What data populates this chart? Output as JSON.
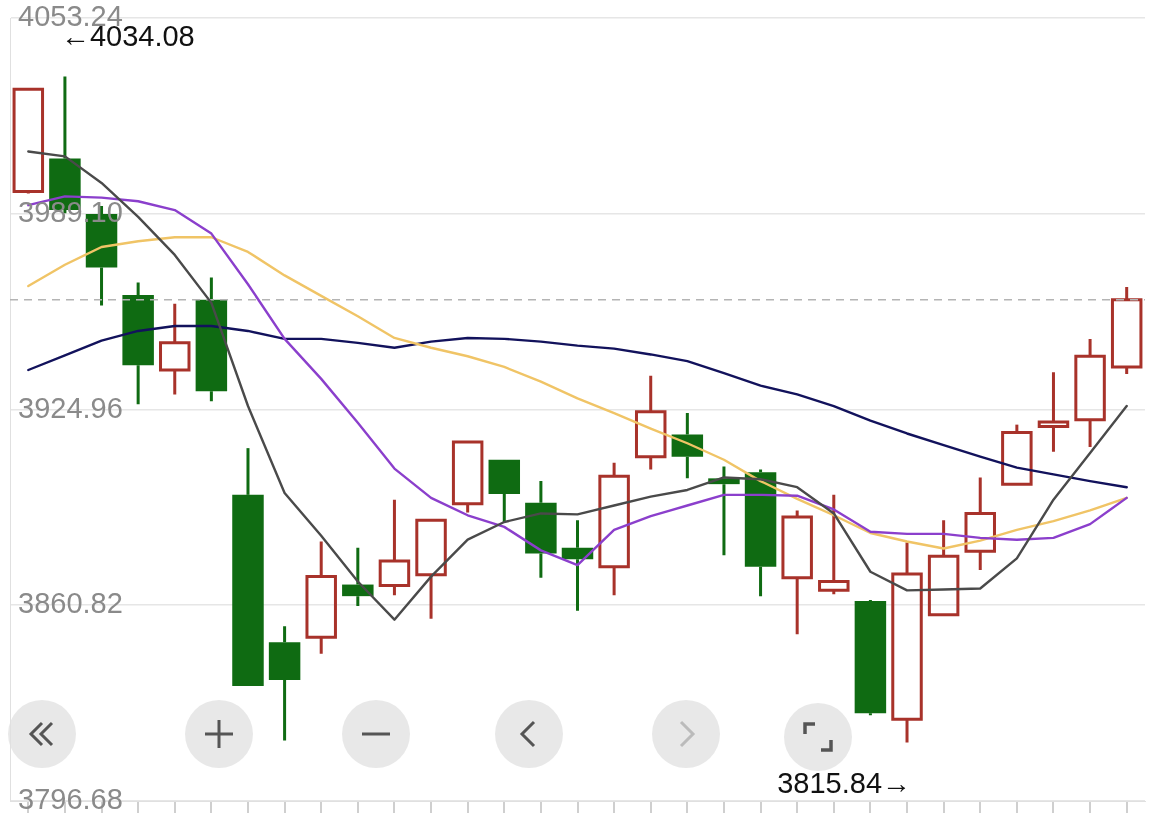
{
  "chart_data": {
    "type": "candlestick",
    "categories": [
      null,
      null,
      null,
      null,
      null,
      null,
      null,
      null,
      null,
      null,
      null,
      null,
      null,
      null,
      null,
      null,
      null,
      null,
      null,
      null,
      null,
      null,
      null,
      null,
      null,
      null,
      null,
      null,
      null,
      null,
      null
    ],
    "ohlc": [
      [
        3996.4,
        4030.2,
        3995.7,
        4029.9
      ],
      [
        4007.2,
        4034.08,
        3989.3,
        3990.3
      ],
      [
        3989.0,
        3991.6,
        3959.0,
        3971.5
      ],
      [
        3962.5,
        3966.6,
        3926.7,
        3939.5
      ],
      [
        3937.9,
        3959.6,
        3929.9,
        3946.8
      ],
      [
        3960.9,
        3968.2,
        3927.7,
        3930.9
      ],
      [
        3897.0,
        3912.3,
        3834.4,
        3834.4
      ],
      [
        3848.7,
        3853.9,
        3816.5,
        3836.3
      ],
      [
        3850.3,
        3881.7,
        3844.9,
        3870.2
      ],
      [
        3867.6,
        3879.7,
        3860.6,
        3863.8
      ],
      [
        3867.3,
        3895.4,
        3864.1,
        3875.3
      ],
      [
        3870.8,
        3888.7,
        3856.4,
        3888.7
      ],
      [
        3894.1,
        3914.3,
        3891.2,
        3914.3
      ],
      [
        3908.5,
        3908.5,
        3888.1,
        3897.3
      ],
      [
        3894.4,
        3901.5,
        3869.8,
        3877.8
      ],
      [
        3879.7,
        3888.7,
        3859.0,
        3875.9
      ],
      [
        3873.4,
        3907.5,
        3864.1,
        3903.1
      ],
      [
        3909.5,
        3936.0,
        3905.3,
        3924.2
      ],
      [
        3916.8,
        3923.8,
        3902.4,
        3909.5
      ],
      [
        3902.4,
        3906.3,
        3877.2,
        3900.5
      ],
      [
        3904.4,
        3905.3,
        3863.8,
        3873.4
      ],
      [
        3869.8,
        3891.9,
        3851.3,
        3889.7
      ],
      [
        3865.7,
        3897.0,
        3864.4,
        3868.6
      ],
      [
        3862.2,
        3862.5,
        3824.8,
        3825.4
      ],
      [
        3823.5,
        3881.4,
        3815.84,
        3871.1
      ],
      [
        3857.7,
        3888.7,
        3857.4,
        3876.9
      ],
      [
        3878.5,
        3902.7,
        3872.4,
        3890.9
      ],
      [
        3900.5,
        3920.0,
        3900.5,
        3917.4
      ],
      [
        3919.4,
        3937.2,
        3911.1,
        3920.9
      ],
      [
        3921.6,
        3948.1,
        3912.7,
        3942.4
      ],
      [
        3938.9,
        3965.1,
        3936.6,
        3960.9
      ]
    ],
    "colors": [
      "#a8322a",
      "#0f6b12",
      "#0f6b12",
      "#0f6b12",
      "#a8322a",
      "#0f6b12",
      "#0f6b12",
      "#0f6b12",
      "#a8322a",
      "#0f6b12",
      "#a8322a",
      "#a8322a",
      "#a8322a",
      "#0f6b12",
      "#0f6b12",
      "#0f6b12",
      "#a8322a",
      "#a8322a",
      "#0f6b12",
      "#0f6b12",
      "#0f6b12",
      "#a8322a",
      "#a8322a",
      "#0f6b12",
      "#a8322a",
      "#a8322a",
      "#a8322a",
      "#a8322a",
      "#a8322a",
      "#a8322a",
      "#a8322a"
    ],
    "series": [
      {
        "type": "line",
        "color": "#4a4a4a",
        "values": [
          4009.5,
          4007.9,
          3999.2,
          3988.1,
          3975.6,
          3959.9,
          3926.1,
          3897.6,
          3883.6,
          3868.6,
          3856.1,
          3870.2,
          3882.3,
          3888.1,
          3890.9,
          3890.6,
          3893.5,
          3896.4,
          3898.6,
          3902.7,
          3902.1,
          3899.5,
          3890.9,
          3871.8,
          3865.7,
          3866.0,
          3866.3,
          3876.2,
          3895.4,
          3910.7,
          3926.1
        ]
      },
      {
        "type": "line",
        "color": "#8b3fcc",
        "values": [
          3991.9,
          3994.8,
          3994.4,
          3993.2,
          3990.3,
          3982.6,
          3966.0,
          3948.1,
          3935.0,
          3920.6,
          3905.6,
          3896.0,
          3890.3,
          3886.5,
          3878.8,
          3874.0,
          3885.5,
          3890.0,
          3893.5,
          3897.0,
          3897.0,
          3896.7,
          3892.2,
          3884.9,
          3884.2,
          3884.2,
          3882.9,
          3882.3,
          3882.9,
          3887.4,
          3896.0
        ]
      },
      {
        "type": "line",
        "color": "#f0c466",
        "values": [
          3965.4,
          3972.4,
          3978.2,
          3980.1,
          3981.4,
          3981.4,
          3976.6,
          3968.9,
          3962.2,
          3955.5,
          3948.4,
          3945.2,
          3942.4,
          3938.9,
          3934.1,
          3928.6,
          3923.8,
          3918.7,
          3913.9,
          3908.5,
          3901.5,
          3895.7,
          3890.3,
          3884.5,
          3881.7,
          3879.4,
          3882.0,
          3885.5,
          3888.4,
          3891.9,
          3896.0
        ]
      },
      {
        "type": "line",
        "color": "#12125c",
        "values": [
          3937.9,
          3942.7,
          3947.5,
          3950.7,
          3952.3,
          3952.3,
          3950.7,
          3948.1,
          3948.1,
          3946.8,
          3945.2,
          3947.2,
          3948.4,
          3948.1,
          3947.2,
          3945.9,
          3944.9,
          3943.0,
          3940.8,
          3936.9,
          3932.8,
          3929.9,
          3926.1,
          3921.3,
          3917.1,
          3913.3,
          3909.5,
          3905.9,
          3903.7,
          3901.5,
          3899.5
        ]
      }
    ],
    "ylim": [
      3796.68,
      4053.24
    ],
    "yticks": [
      3796.68,
      3860.82,
      {
        "value": 3924.96,
        "label": "3924.96"
      },
      {
        "value": 3989.1,
        "label": "3989.10"
      },
      4053.24
    ],
    "ref_lines": [
      {
        "axis": "y",
        "value": 3960.9,
        "color": "#b4b4b4",
        "line_style": "dashed"
      }
    ],
    "annotations": [
      "←4034.08",
      "3815.84→"
    ],
    "grid": "y",
    "legend": false,
    "tick_labels": "y",
    "marker": "none",
    "line_style": "solid"
  }
}
